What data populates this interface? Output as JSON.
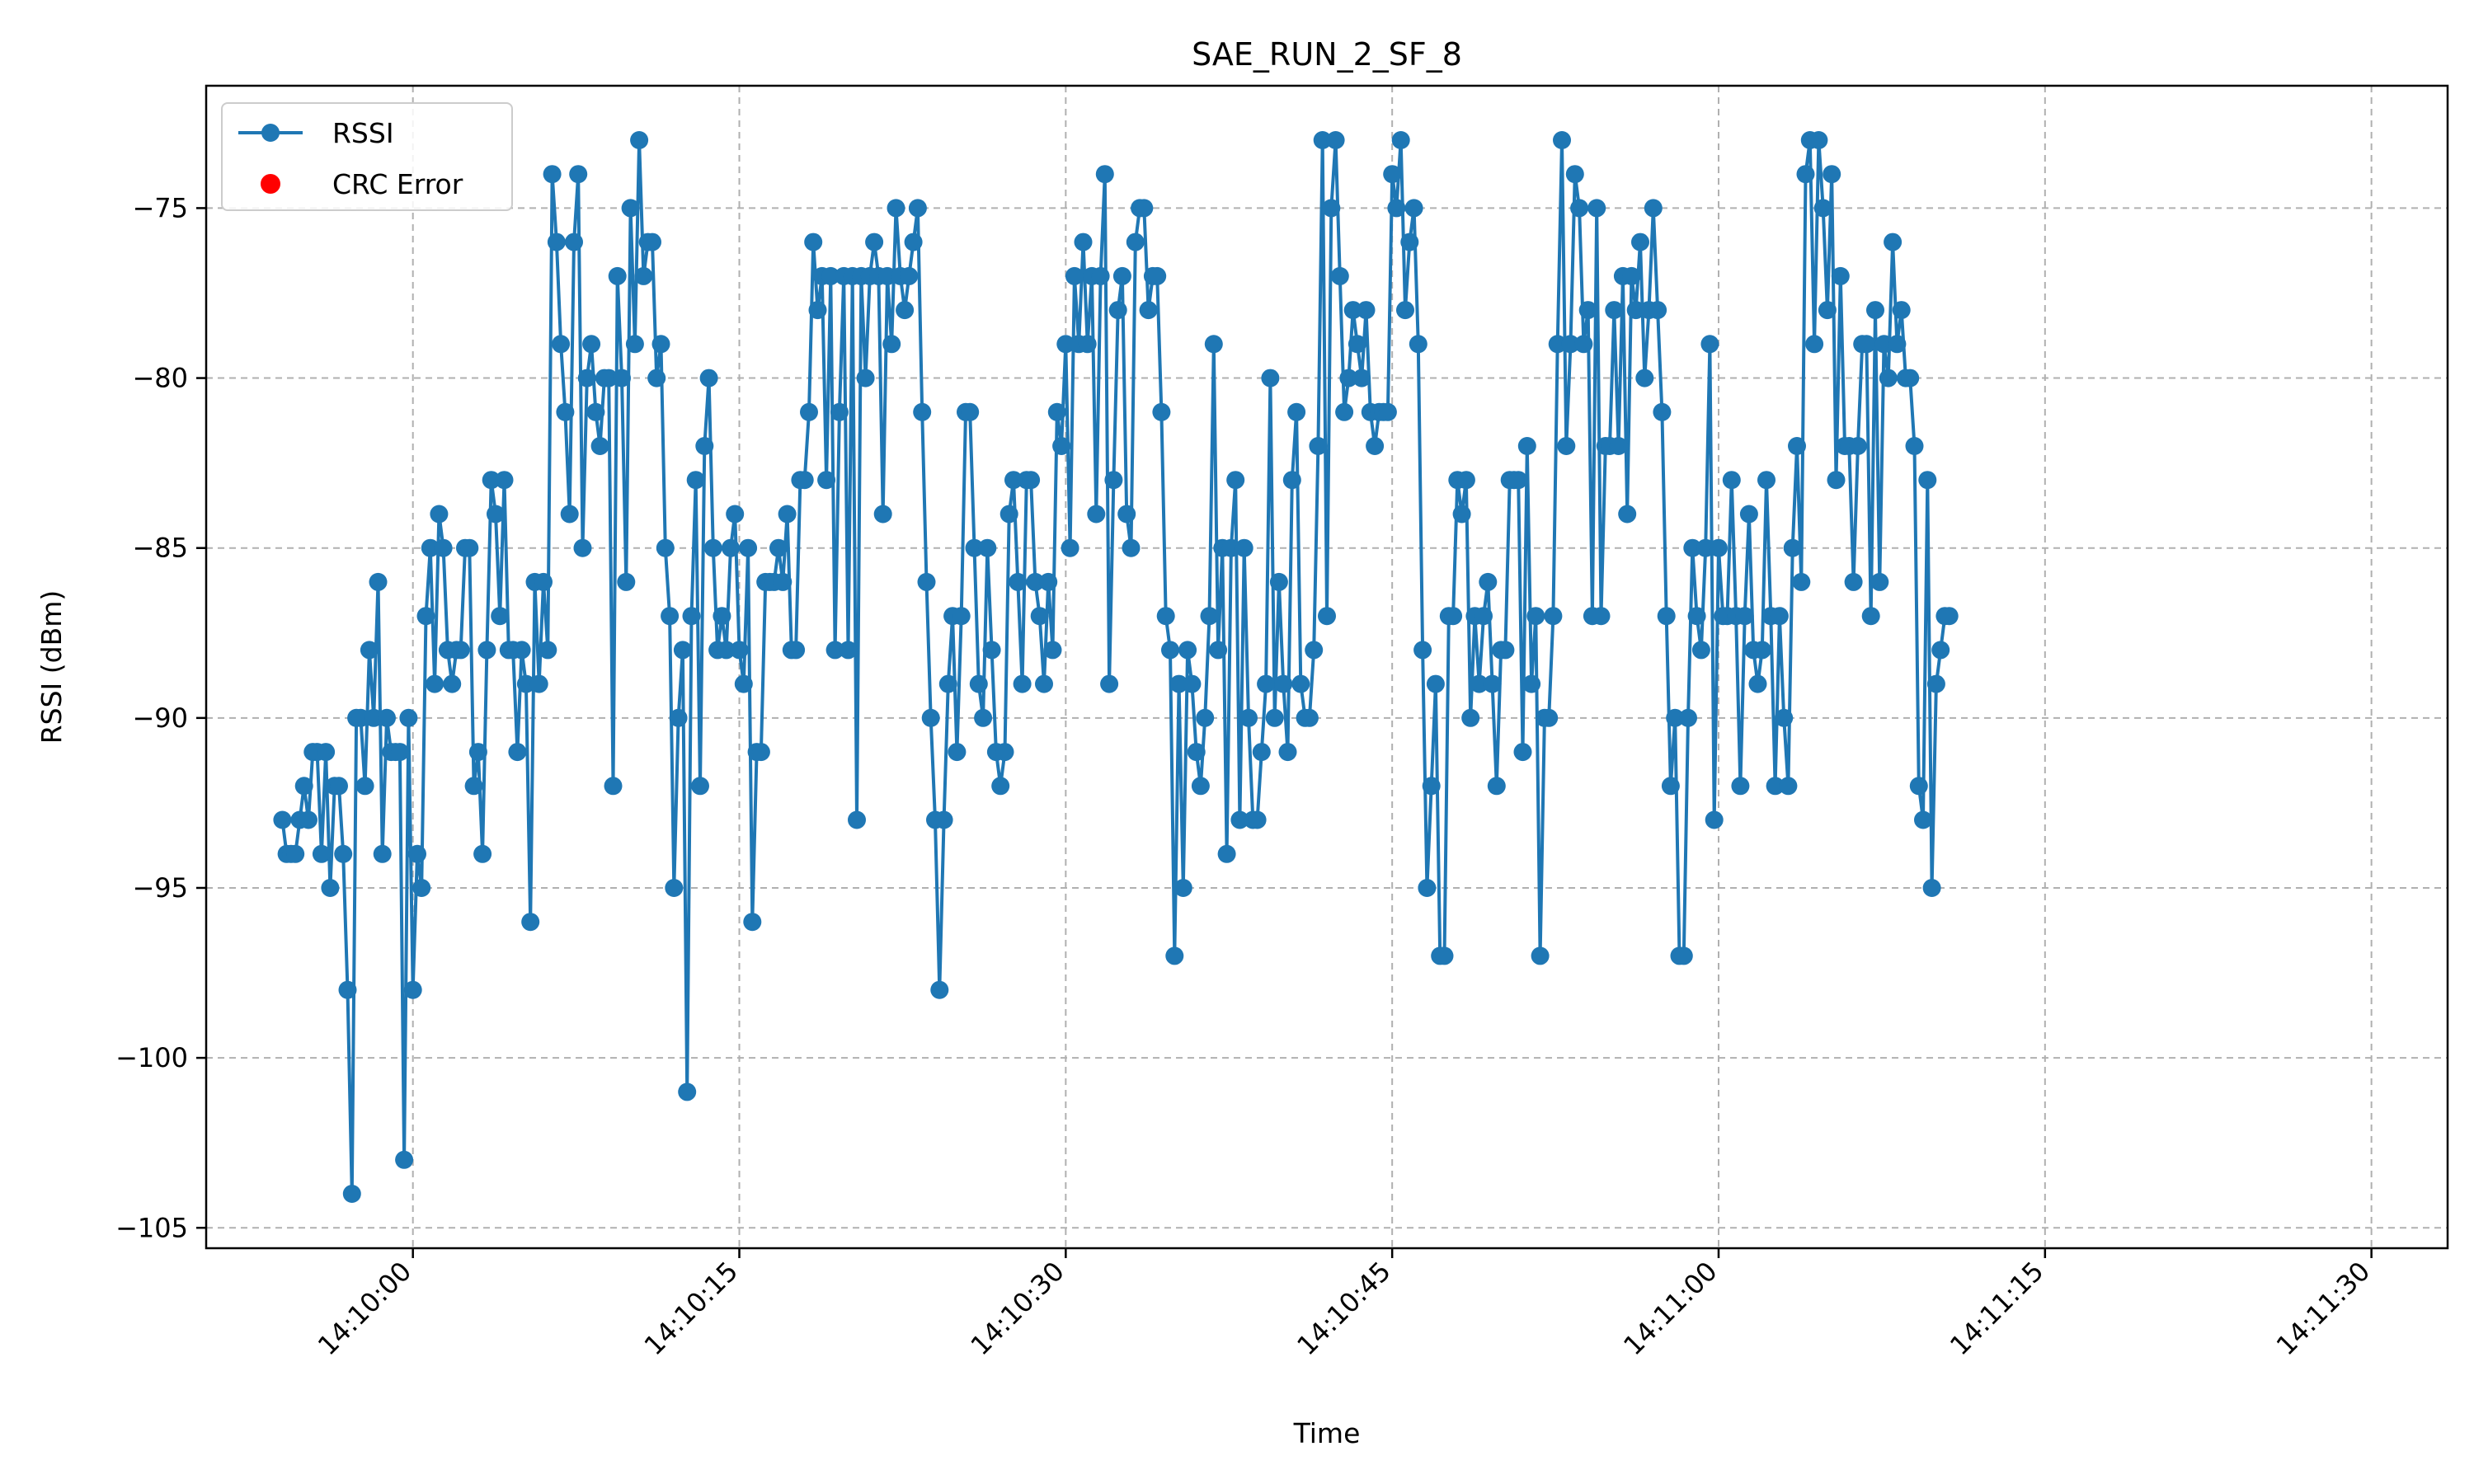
{
  "chart_data": {
    "type": "line",
    "title": "SAE_RUN_2_SF_8",
    "xlabel": "Time",
    "ylabel": "RSSI (dBm)",
    "x_start_time": "14:09:54",
    "x_step_seconds": 0.2,
    "xlim": [
      "14:09:50.5",
      "14:11:33.5"
    ],
    "ylim": [
      -105.6,
      -71.4
    ],
    "x_ticks": [
      "14:10:00",
      "14:10:15",
      "14:10:30",
      "14:10:45",
      "14:11:00",
      "14:11:15",
      "14:11:30"
    ],
    "y_ticks": [
      -75,
      -80,
      -85,
      -90,
      -95,
      -100,
      -105
    ],
    "y_tick_labels": [
      "−75",
      "−80",
      "−85",
      "−90",
      "−95",
      "−100",
      "−105"
    ],
    "grid": true,
    "legend_position": "top-left",
    "series": [
      {
        "name": "RSSI",
        "color": "#1f77b4",
        "marker": "circle",
        "values": [
          -93,
          -94,
          -94,
          -94,
          -93,
          -92,
          -93,
          -91,
          -91,
          -94,
          -91,
          -95,
          -92,
          -92,
          -94,
          -98,
          -104,
          -90,
          -90,
          -92,
          -88,
          -90,
          -86,
          -94,
          -90,
          -91,
          -91,
          -91,
          -103,
          -90,
          -98,
          -94,
          -95,
          -87,
          -85,
          -89,
          -84,
          -85,
          -88,
          -89,
          -88,
          -88,
          -85,
          -85,
          -92,
          -91,
          -94,
          -88,
          -83,
          -84,
          -87,
          -83,
          -88,
          -88,
          -91,
          -88,
          -89,
          -96,
          -86,
          -89,
          -86,
          -88,
          -74,
          -76,
          -79,
          -81,
          -84,
          -76,
          -74,
          -85,
          -80,
          -79,
          -81,
          -82,
          -80,
          -80,
          -92,
          -77,
          -80,
          -86,
          -75,
          -79,
          -73,
          -77,
          -76,
          -76,
          -80,
          -79,
          -85,
          -87,
          -95,
          -90,
          -88,
          -101,
          -87,
          -83,
          -92,
          -82,
          -80,
          -85,
          -88,
          -87,
          -88,
          -85,
          -84,
          -88,
          -89,
          -85,
          -96,
          -91,
          -91,
          -86,
          -86,
          -86,
          -85,
          -86,
          -84,
          -88,
          -88,
          -83,
          -83,
          -81,
          -76,
          -78,
          -77,
          -83,
          -77,
          -88,
          -81,
          -77,
          -88,
          -77,
          -93,
          -77,
          -80,
          -77,
          -76,
          -77,
          -84,
          -77,
          -79,
          -75,
          -77,
          -78,
          -77,
          -76,
          -75,
          -81,
          -86,
          -90,
          -93,
          -98,
          -93,
          -89,
          -87,
          -91,
          -87,
          -81,
          -81,
          -85,
          -89,
          -90,
          -85,
          -88,
          -91,
          -92,
          -91,
          -84,
          -83,
          -86,
          -89,
          -83,
          -83,
          -86,
          -87,
          -89,
          -86,
          -88,
          -81,
          -82,
          -79,
          -85,
          -77,
          -79,
          -76,
          -79,
          -77,
          -84,
          -77,
          -74,
          -89,
          -83,
          -78,
          -77,
          -84,
          -85,
          -76,
          -75,
          -75,
          -78,
          -77,
          -77,
          -81,
          -87,
          -88,
          -97,
          -89,
          -95,
          -88,
          -89,
          -91,
          -92,
          -90,
          -87,
          -79,
          -88,
          -85,
          -94,
          -85,
          -83,
          -93,
          -85,
          -90,
          -93,
          -93,
          -91,
          -89,
          -80,
          -90,
          -86,
          -89,
          -91,
          -83,
          -81,
          -89,
          -90,
          -90,
          -88,
          -82,
          -73,
          -87,
          -75,
          -73,
          -77,
          -81,
          -80,
          -78,
          -79,
          -80,
          -78,
          -81,
          -82,
          -81,
          -81,
          -81,
          -74,
          -75,
          -73,
          -78,
          -76,
          -75,
          -79,
          -88,
          -95,
          -92,
          -89,
          -97,
          -97,
          -87,
          -87,
          -83,
          -84,
          -83,
          -90,
          -87,
          -89,
          -87,
          -86,
          -89,
          -92,
          -88,
          -88,
          -83,
          -83,
          -83,
          -91,
          -82,
          -89,
          -87,
          -97,
          -90,
          -90,
          -87,
          -79,
          -73,
          -82,
          -79,
          -74,
          -75,
          -79,
          -78,
          -87,
          -75,
          -87,
          -82,
          -82,
          -78,
          -82,
          -77,
          -84,
          -77,
          -78,
          -76,
          -80,
          -78,
          -75,
          -78,
          -81,
          -87,
          -92,
          -90,
          -97,
          -97,
          -90,
          -85,
          -87,
          -88,
          -85,
          -79,
          -93,
          -85,
          -87,
          -87,
          -83,
          -87,
          -92,
          -87,
          -84,
          -88,
          -89,
          -88,
          -83,
          -87,
          -92,
          -87,
          -90,
          -92,
          -85,
          -82,
          -86,
          -74,
          -73,
          -79,
          -73,
          -75,
          -78,
          -74,
          -83,
          -77,
          -82,
          -82,
          -86,
          -82,
          -79,
          -79,
          -87,
          -78,
          -86,
          -79,
          -80,
          -76,
          -79,
          -78,
          -80,
          -80,
          -82,
          -92,
          -93,
          -83,
          -95,
          -89,
          -88,
          -87,
          -87
        ]
      },
      {
        "name": "CRC Error",
        "color": "#ff0000",
        "marker": "circle",
        "values": []
      }
    ]
  }
}
